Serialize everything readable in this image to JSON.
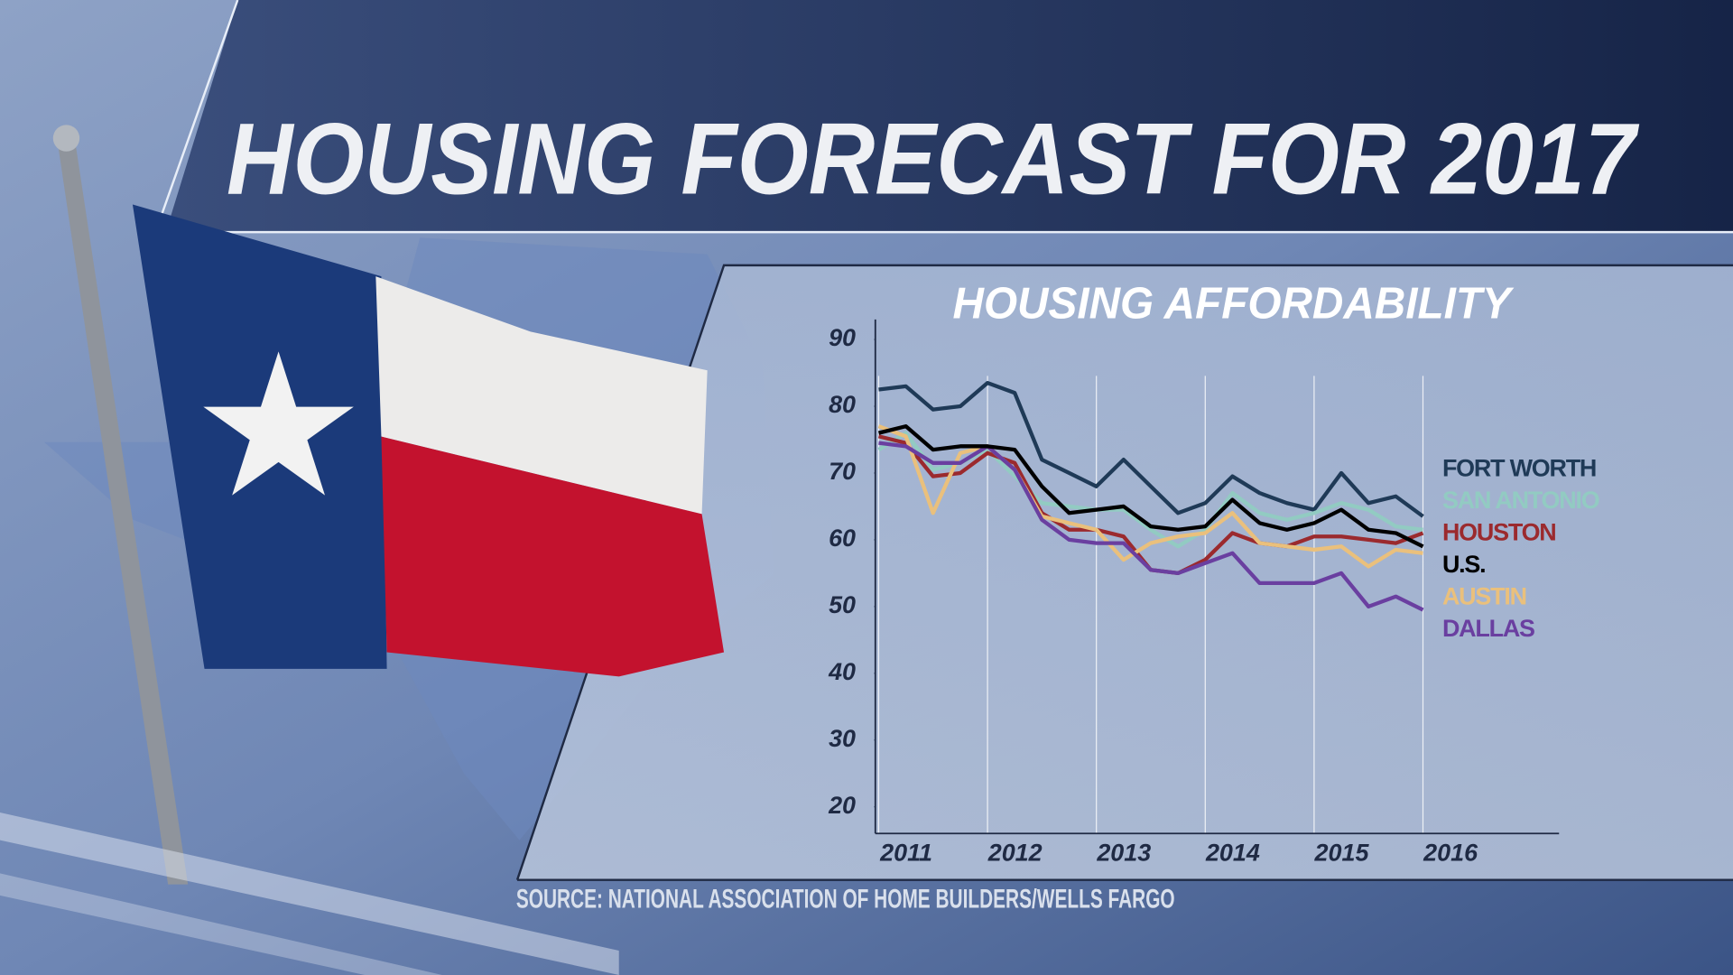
{
  "header": {
    "title": "HOUSING FORECAST FOR 2017"
  },
  "chart_data": {
    "type": "line",
    "title": "HOUSING AFFORDABILITY",
    "x": [
      2011,
      2011.25,
      2011.5,
      2011.75,
      2012,
      2012.25,
      2012.5,
      2012.75,
      2013,
      2013.25,
      2013.5,
      2013.75,
      2014,
      2014.25,
      2014.5,
      2014.75,
      2015,
      2015.25,
      2015.5,
      2015.75,
      2016
    ],
    "xlim": [
      2011,
      2017.25
    ],
    "xticks": [
      2011,
      2012,
      2013,
      2014,
      2015,
      2016
    ],
    "ylim": [
      16,
      93
    ],
    "yticks": [
      20,
      30,
      40,
      50,
      60,
      70,
      80,
      90
    ],
    "grid": true,
    "series": [
      {
        "name": "FORT WORTH",
        "color": "#1f3a57",
        "values": [
          82.5,
          83,
          79.5,
          80,
          83.5,
          82,
          72,
          70,
          68,
          72,
          68,
          64,
          65.5,
          69.5,
          67,
          65.5,
          64.5,
          70,
          65.5,
          66.5,
          63.5
        ]
      },
      {
        "name": "SAN ANTONIO",
        "color": "#92cbc2",
        "values": [
          73.5,
          76,
          70.5,
          71.5,
          73.5,
          69.5,
          65.5,
          65,
          64.5,
          64.5,
          61.5,
          59,
          61.5,
          67,
          64,
          63,
          64,
          65.5,
          64.5,
          62,
          61.5
        ]
      },
      {
        "name": "HOUSTON",
        "color": "#9b2a2e",
        "values": [
          75.5,
          74.5,
          69.5,
          70,
          73,
          71.5,
          64,
          61.5,
          61.5,
          60.5,
          55.5,
          55,
          57,
          61,
          59.5,
          59,
          60.5,
          60.5,
          60,
          59.5,
          61
        ]
      },
      {
        "name": "U.S.",
        "color": "#000000",
        "values": [
          76,
          77,
          73.5,
          74,
          74,
          73.5,
          68,
          64,
          64.5,
          65,
          62,
          61.5,
          62,
          66,
          62.5,
          61.5,
          62.5,
          64.5,
          61.5,
          61,
          59
        ]
      },
      {
        "name": "AUSTIN",
        "color": "#eac07c",
        "values": [
          77,
          75.5,
          64,
          73,
          74,
          70.5,
          63.5,
          62.5,
          61.5,
          57,
          59.5,
          60.5,
          61,
          64,
          59.5,
          59,
          58.5,
          59,
          56,
          58.5,
          58
        ]
      },
      {
        "name": "DALLAS",
        "color": "#6a3fa0",
        "values": [
          74.5,
          74,
          71.5,
          71.5,
          74,
          70.5,
          63,
          60,
          59.5,
          59.5,
          55.5,
          55,
          56.5,
          58,
          53.5,
          53.5,
          53.5,
          55,
          50,
          51.5,
          49.5
        ]
      }
    ],
    "source": "SOURCE: NATIONAL ASSOCIATION OF HOME BUILDERS/WELLS FARGO"
  }
}
